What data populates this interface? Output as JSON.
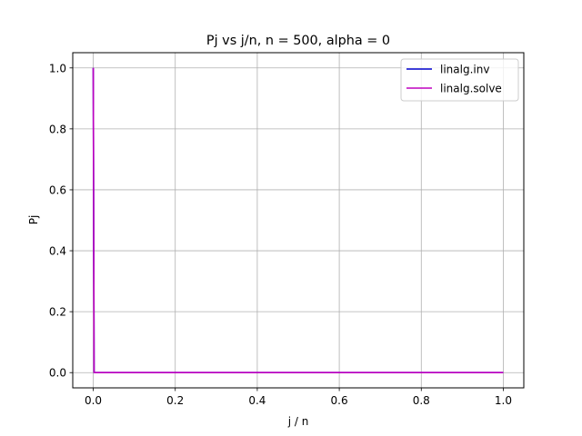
{
  "chart_data": {
    "type": "line",
    "title": "Pj vs j/n, n = 500, alpha = 0",
    "xlabel": "j / n",
    "ylabel": "Pj",
    "xlim": [
      -0.05,
      1.05
    ],
    "ylim": [
      -0.05,
      1.05
    ],
    "xticks": [
      0.0,
      0.2,
      0.4,
      0.6,
      0.8,
      1.0
    ],
    "yticks": [
      0.0,
      0.2,
      0.4,
      0.6,
      0.8,
      1.0
    ],
    "xtick_labels": [
      "0.0",
      "0.2",
      "0.4",
      "0.6",
      "0.8",
      "1.0"
    ],
    "ytick_labels": [
      "0.0",
      "0.2",
      "0.4",
      "0.6",
      "0.8",
      "1.0"
    ],
    "grid": true,
    "legend_position": "top-right",
    "series": [
      {
        "name": "linalg.inv",
        "color": "#0000cc",
        "x": [
          0.0,
          0.002,
          1.0
        ],
        "y": [
          1.0,
          0.0,
          0.0
        ]
      },
      {
        "name": "linalg.solve",
        "color": "#bf00bf",
        "x": [
          0.0,
          0.002,
          1.0
        ],
        "y": [
          1.0,
          0.0,
          0.0
        ]
      }
    ]
  }
}
